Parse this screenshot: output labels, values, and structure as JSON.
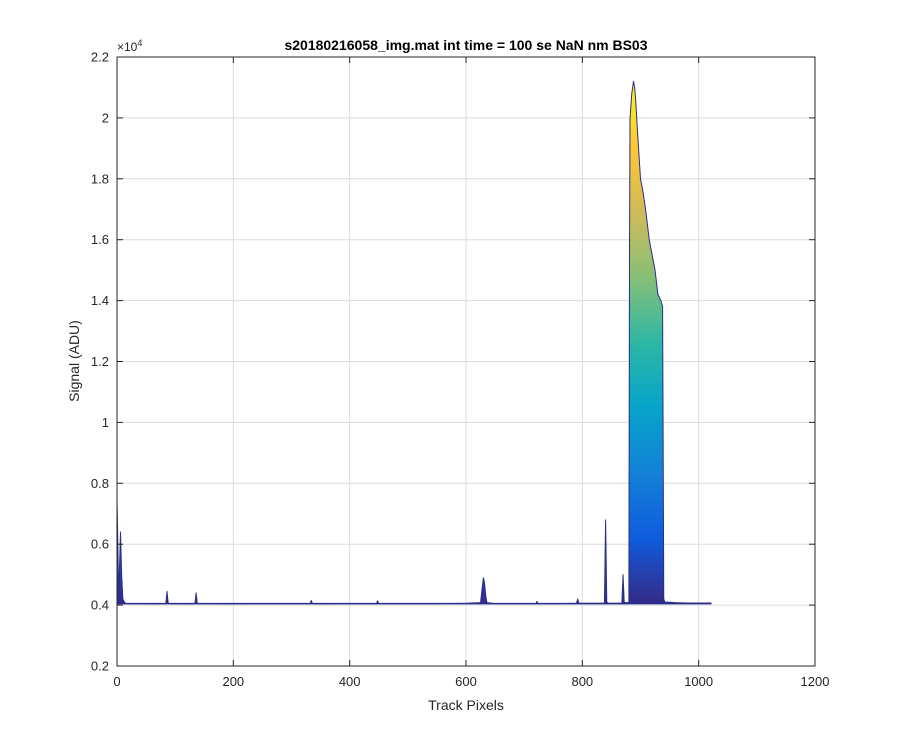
{
  "chart_data": {
    "type": "area",
    "title": "s20180216058_img.mat int time = 100 se  NaN nm BS03",
    "xlabel": "Track Pixels",
    "ylabel": "Signal (ADU)",
    "y_exponent_base": "×10",
    "y_exponent_power": "4",
    "xlim": [
      0,
      1200
    ],
    "ylim": [
      0.2,
      2.2
    ],
    "xticks": [
      0,
      200,
      400,
      600,
      800,
      1000,
      1200
    ],
    "xtick_labels": [
      "0",
      "200",
      "400",
      "600",
      "800",
      "1000",
      "1200"
    ],
    "yticks": [
      0.2,
      0.4,
      0.6,
      0.8,
      1.0,
      1.2,
      1.4,
      1.6,
      1.8,
      2.0,
      2.2
    ],
    "ytick_labels": [
      "0.2",
      "0.4",
      "0.6",
      "0.8",
      "1",
      "1.2",
      "1.4",
      "1.6",
      "1.8",
      "2",
      "2.2"
    ],
    "grid": true,
    "colormap": [
      "#352a87",
      "#0f5cdd",
      "#1481d6",
      "#06a4ca",
      "#2eb7a4",
      "#87bf77",
      "#d1bb59",
      "#fec832",
      "#f9fb0e"
    ],
    "baseline": 0.405,
    "x": [
      0,
      3,
      6,
      8,
      10,
      14,
      20,
      40,
      60,
      84,
      86,
      88,
      90,
      120,
      134,
      136,
      138,
      140,
      200,
      250,
      300,
      332,
      334,
      336,
      350,
      400,
      446,
      448,
      450,
      500,
      550,
      600,
      625,
      628,
      630,
      632,
      634,
      636,
      650,
      700,
      720,
      722,
      724,
      760,
      790,
      792,
      794,
      820,
      838,
      840,
      842,
      844,
      846,
      860,
      868,
      870,
      872,
      874,
      880,
      881,
      882,
      885,
      888,
      890,
      892,
      895,
      900,
      905,
      910,
      915,
      920,
      925,
      930,
      935,
      938,
      940,
      942,
      960,
      980,
      1000,
      1022
    ],
    "values": [
      0.75,
      0.43,
      0.64,
      0.5,
      0.42,
      0.406,
      0.405,
      0.405,
      0.404,
      0.405,
      0.445,
      0.406,
      0.405,
      0.404,
      0.405,
      0.44,
      0.406,
      0.405,
      0.404,
      0.405,
      0.405,
      0.405,
      0.415,
      0.405,
      0.404,
      0.405,
      0.405,
      0.414,
      0.405,
      0.405,
      0.405,
      0.406,
      0.408,
      0.46,
      0.49,
      0.47,
      0.43,
      0.408,
      0.405,
      0.405,
      0.405,
      0.412,
      0.405,
      0.405,
      0.406,
      0.42,
      0.406,
      0.406,
      0.406,
      0.68,
      0.41,
      0.407,
      0.406,
      0.406,
      0.407,
      0.5,
      0.41,
      0.408,
      0.408,
      1.5,
      2.0,
      2.08,
      2.12,
      2.1,
      2.05,
      1.95,
      1.8,
      1.75,
      1.68,
      1.6,
      1.55,
      1.5,
      1.42,
      1.4,
      1.38,
      0.42,
      0.41,
      0.408,
      0.407,
      0.407,
      0.407
    ]
  }
}
